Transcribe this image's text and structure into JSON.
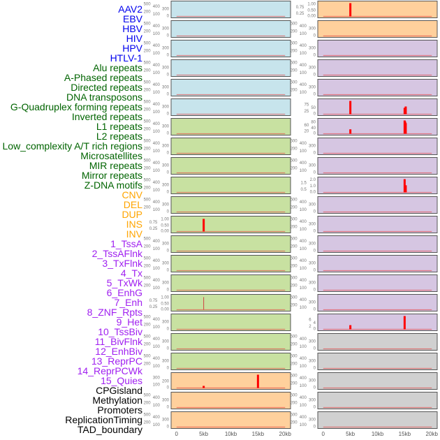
{
  "colors": {
    "virus": "#0000ee",
    "repeat": "#006400",
    "sv": "#ffa500",
    "chromhmm": "#a020f0",
    "other": "#000000",
    "bg_virus": "#c7e4ec",
    "bg_repeat": "#c8e1a1",
    "bg_sv": "#ffd09c",
    "bg_chromhmm": "#d6c6e2",
    "bg_other": "#d0d0d0",
    "bar": "#ff0000"
  },
  "labels": [
    {
      "text": "AAV2",
      "group": "virus"
    },
    {
      "text": "EBV",
      "group": "virus"
    },
    {
      "text": "HBV",
      "group": "virus"
    },
    {
      "text": "HIV",
      "group": "virus"
    },
    {
      "text": "HPV",
      "group": "virus"
    },
    {
      "text": "HTLV-1",
      "group": "virus"
    },
    {
      "text": "Alu repeats",
      "group": "repeat"
    },
    {
      "text": "A-Phased repeats",
      "group": "repeat"
    },
    {
      "text": "Directed repeats",
      "group": "repeat"
    },
    {
      "text": "DNA transposons",
      "group": "repeat"
    },
    {
      "text": "G-Quadruplex forming repeats",
      "group": "repeat"
    },
    {
      "text": "Inverted repeats",
      "group": "repeat"
    },
    {
      "text": "L1 repeats",
      "group": "repeat"
    },
    {
      "text": "L2 repeats",
      "group": "repeat"
    },
    {
      "text": "Low_complexity A/T rich regions",
      "group": "repeat"
    },
    {
      "text": "Microsatellites",
      "group": "repeat"
    },
    {
      "text": "MIR repeats",
      "group": "repeat"
    },
    {
      "text": "Mirror repeats",
      "group": "repeat"
    },
    {
      "text": "Z-DNA motifs",
      "group": "repeat"
    },
    {
      "text": "CNV",
      "group": "sv"
    },
    {
      "text": "DEL",
      "group": "sv"
    },
    {
      "text": "DUP",
      "group": "sv"
    },
    {
      "text": "INS",
      "group": "sv"
    },
    {
      "text": "INV",
      "group": "sv"
    },
    {
      "text": "1_TssA",
      "group": "chromhmm"
    },
    {
      "text": "2_TssAFlnk",
      "group": "chromhmm"
    },
    {
      "text": "3_TxFlnk",
      "group": "chromhmm"
    },
    {
      "text": "4_Tx",
      "group": "chromhmm"
    },
    {
      "text": "5_TxWk",
      "group": "chromhmm"
    },
    {
      "text": "6_EnhG",
      "group": "chromhmm"
    },
    {
      "text": "7_Enh",
      "group": "chromhmm"
    },
    {
      "text": "8_ZNF_Rpts",
      "group": "chromhmm"
    },
    {
      "text": "9_Het",
      "group": "chromhmm"
    },
    {
      "text": "10_TssBiv",
      "group": "chromhmm"
    },
    {
      "text": "11_BivFlnk",
      "group": "chromhmm"
    },
    {
      "text": "12_EnhBiv",
      "group": "chromhmm"
    },
    {
      "text": "13_ReprPC",
      "group": "chromhmm"
    },
    {
      "text": "14_ReprPCWk",
      "group": "chromhmm"
    },
    {
      "text": "15_Quies",
      "group": "chromhmm"
    },
    {
      "text": "CPGisland",
      "group": "other"
    },
    {
      "text": "Methylation",
      "group": "other"
    },
    {
      "text": "Promoters",
      "group": "other"
    },
    {
      "text": "ReplicationTiming",
      "group": "other"
    },
    {
      "text": "TAD_boundary",
      "group": "other"
    }
  ],
  "chart_data": {
    "type": "bar",
    "title": "",
    "xlabel": "",
    "xlim": [
      -1000,
      21000
    ],
    "x_ticks": [
      0,
      5000,
      10000,
      15000,
      20000
    ],
    "x_tick_labels": [
      "0",
      "5kb",
      "10kb",
      "15kb",
      "20kb"
    ],
    "default_ticks": [
      0,
      100,
      200,
      300,
      400,
      500
    ],
    "default_ylim": [
      0,
      530
    ],
    "panels": [
      {
        "name": "AAV2",
        "group": "virus",
        "bars": []
      },
      {
        "name": "EBV",
        "group": "virus",
        "bars": []
      },
      {
        "name": "HBV",
        "group": "virus",
        "bars": []
      },
      {
        "name": "HIV",
        "group": "virus",
        "bars": []
      },
      {
        "name": "HPV",
        "group": "virus",
        "bars": []
      },
      {
        "name": "HTLV-1",
        "group": "virus",
        "bars": []
      },
      {
        "name": "Alu repeats",
        "group": "repeat",
        "bars": []
      },
      {
        "name": "A-Phased repeats",
        "group": "repeat",
        "bars": []
      },
      {
        "name": "Directed repeats",
        "group": "repeat",
        "bars": []
      },
      {
        "name": "DNA transposons",
        "group": "repeat",
        "bars": []
      },
      {
        "name": "G-Quadruplex forming repeats",
        "group": "repeat",
        "bars": []
      },
      {
        "name": "Inverted repeats",
        "group": "repeat",
        "ticks": [
          "0.00",
          "0.25",
          "0.50",
          "0.75",
          "1.00"
        ],
        "ylim": [
          0,
          1.05
        ],
        "bars": [
          {
            "x": 5000,
            "y": 1.0
          }
        ]
      },
      {
        "name": "L1 repeats",
        "group": "repeat",
        "bars": []
      },
      {
        "name": "L2 repeats",
        "group": "repeat",
        "bars": []
      },
      {
        "name": "Low_complexity A/T rich regions",
        "group": "repeat",
        "bars": []
      },
      {
        "name": "Microsatellites",
        "group": "repeat",
        "ticks": [
          "0.00",
          "0.25",
          "0.50",
          "0.75",
          "1.00"
        ],
        "ylim": [
          0,
          1.05
        ],
        "bars": [
          {
            "x": 5000,
            "y": 1.0,
            "thin": true
          }
        ]
      },
      {
        "name": "MIR repeats",
        "group": "repeat",
        "bars": []
      },
      {
        "name": "Mirror repeats",
        "group": "repeat",
        "bars": []
      },
      {
        "name": "Z-DNA motifs",
        "group": "repeat",
        "bars": []
      },
      {
        "name": "CNV",
        "group": "sv",
        "ticks": [
          "0",
          "100",
          "200",
          "300"
        ],
        "ylim": [
          0,
          380
        ],
        "bars": [
          {
            "x": 5000,
            "y": 60
          },
          {
            "x": 15000,
            "y": 380
          }
        ]
      },
      {
        "name": "DEL",
        "group": "sv",
        "bars": []
      },
      {
        "name": "DUP",
        "group": "sv",
        "bars": []
      },
      {
        "name": "INS",
        "group": "sv",
        "ticks": [
          "0.00",
          "0.25",
          "0.50",
          "0.75",
          "1.00"
        ],
        "ylim": [
          0,
          1.05
        ],
        "bars": [
          {
            "x": 5000,
            "y": 1.05
          }
        ]
      },
      {
        "name": "INV",
        "group": "sv",
        "bars": []
      },
      {
        "name": "1_TssA",
        "group": "chromhmm",
        "bars": []
      },
      {
        "name": "2_TssAFlnk",
        "group": "chromhmm",
        "bars": []
      },
      {
        "name": "3_TxFlnk",
        "group": "chromhmm",
        "bars": []
      },
      {
        "name": "4_Tx",
        "group": "chromhmm",
        "ticks": [
          "0",
          "25",
          "50",
          "75"
        ],
        "ylim": [
          0,
          100
        ],
        "bars": [
          {
            "x": 5000,
            "y": 100
          },
          {
            "x": 15000,
            "y": 48
          },
          {
            "x": 15200,
            "y": 58
          }
        ]
      },
      {
        "name": "5_TxWk",
        "group": "chromhmm",
        "ticks": [
          "0",
          "20",
          "40",
          "60",
          "80"
        ],
        "ylim": [
          0,
          90
        ],
        "bars": [
          {
            "x": 5000,
            "y": 30
          },
          {
            "x": 15000,
            "y": 90
          },
          {
            "x": 15100,
            "y": 82
          },
          {
            "x": 15200,
            "y": 72
          }
        ]
      },
      {
        "name": "6_EnhG",
        "group": "chromhmm",
        "bars": []
      },
      {
        "name": "7_Enh",
        "group": "chromhmm",
        "bars": []
      },
      {
        "name": "8_ZNF_Rpts",
        "group": "chromhmm",
        "ticks": [
          "0.0",
          "0.5",
          "1.0",
          "1.5",
          "2.0"
        ],
        "ylim": [
          0,
          2.05
        ],
        "bars": [
          {
            "x": 15000,
            "y": 2.05
          },
          {
            "x": 15200,
            "y": 1.1
          }
        ]
      },
      {
        "name": "9_Het",
        "group": "chromhmm",
        "bars": []
      },
      {
        "name": "10_TssBiv",
        "group": "chromhmm",
        "bars": []
      },
      {
        "name": "11_BivFlnk",
        "group": "chromhmm",
        "bars": []
      },
      {
        "name": "12_EnhBiv",
        "group": "chromhmm",
        "bars": []
      },
      {
        "name": "13_ReprPC",
        "group": "chromhmm",
        "bars": []
      },
      {
        "name": "14_ReprPCWk",
        "group": "chromhmm",
        "bars": []
      },
      {
        "name": "15_Quies",
        "group": "chromhmm",
        "ticks": [
          "0",
          "2",
          "4",
          "6"
        ],
        "ylim": [
          0,
          8
        ],
        "bars": [
          {
            "x": 5000,
            "y": 2.5
          },
          {
            "x": 15000,
            "y": 8
          }
        ]
      },
      {
        "name": "CPGisland",
        "group": "other",
        "bars": []
      },
      {
        "name": "Methylation",
        "group": "other",
        "bars": []
      },
      {
        "name": "Promoters",
        "group": "other",
        "bars": []
      },
      {
        "name": "ReplicationTiming",
        "group": "other",
        "bars": []
      },
      {
        "name": "TAD_boundary",
        "group": "other",
        "bars": []
      }
    ]
  }
}
